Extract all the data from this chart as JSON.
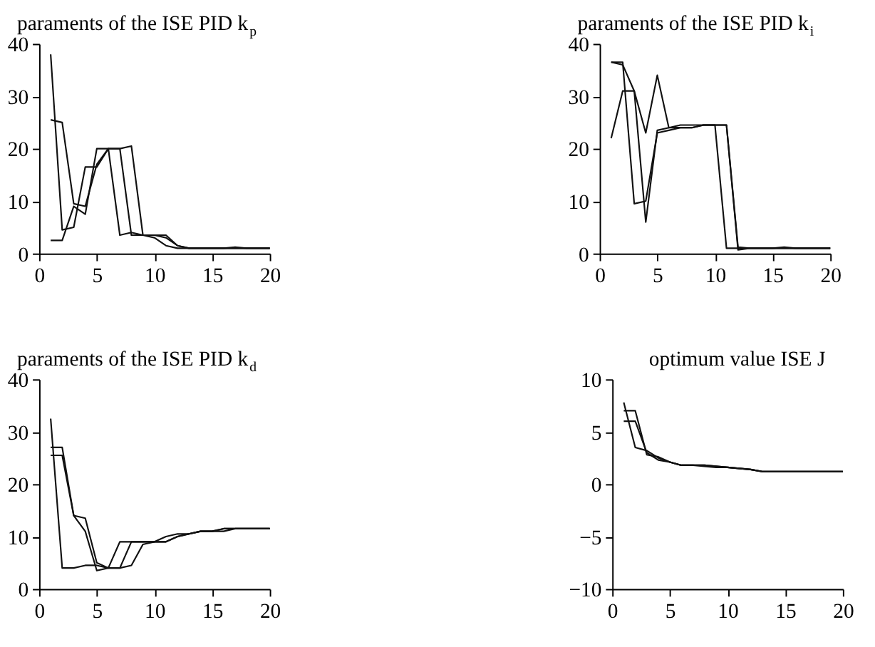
{
  "chart_data": [
    {
      "type": "line",
      "title": "paraments of the ISE PID k$_{p}$",
      "x": [
        1,
        2,
        3,
        4,
        5,
        6,
        7,
        8,
        9,
        10,
        11,
        12,
        13,
        14,
        15,
        16,
        17,
        18,
        19,
        20
      ],
      "xlim": [
        0,
        20
      ],
      "xticks": [
        0,
        5,
        10,
        15,
        20
      ],
      "ylim": [
        0,
        40
      ],
      "yticks": [
        0,
        10,
        20,
        30,
        40
      ],
      "grid": false,
      "series": [
        {
          "color": "#111111",
          "values": [
            38,
            4.5,
            5,
            16.5,
            16.5,
            20,
            20,
            3.5,
            3.5,
            3,
            1.5,
            1,
            1,
            1,
            1,
            1,
            1,
            1,
            1,
            1
          ]
        },
        {
          "color": "#111111",
          "values": [
            25.5,
            25,
            9.5,
            9,
            17,
            20,
            3.5,
            4,
            3.5,
            3.5,
            3,
            1.5,
            1,
            1,
            1,
            1,
            1,
            1,
            1,
            1
          ]
        },
        {
          "color": "#111111",
          "values": [
            2.5,
            2.5,
            9,
            7.5,
            20,
            20,
            20,
            20.5,
            3.5,
            3.5,
            3.5,
            1.5,
            1,
            1,
            1,
            1,
            1.2,
            1,
            1,
            1
          ]
        }
      ]
    },
    {
      "type": "line",
      "title": "paraments of the ISE PID k$_{i}$",
      "x": [
        1,
        2,
        3,
        4,
        5,
        6,
        7,
        8,
        9,
        10,
        11,
        12,
        13,
        14,
        15,
        16,
        17,
        18,
        19,
        20
      ],
      "xlim": [
        0,
        20
      ],
      "xticks": [
        0,
        5,
        10,
        15,
        20
      ],
      "ylim": [
        0,
        40
      ],
      "yticks": [
        0,
        10,
        20,
        30,
        40
      ],
      "grid": false,
      "series": [
        {
          "color": "#111111",
          "values": [
            36.5,
            36.5,
            9.5,
            10,
            23,
            23.5,
            24,
            24,
            24.5,
            24.5,
            1,
            1,
            1,
            1,
            1,
            1,
            1,
            1,
            1,
            1
          ]
        },
        {
          "color": "#111111",
          "values": [
            36.5,
            36,
            31,
            6,
            23.5,
            24,
            24,
            24,
            24.5,
            24.5,
            24.5,
            0.7,
            1,
            1,
            1,
            1.2,
            1,
            1,
            1,
            1
          ]
        },
        {
          "color": "#111111",
          "values": [
            22,
            31,
            31,
            23,
            34,
            24,
            24.5,
            24.5,
            24.5,
            24.5,
            24.5,
            1.2,
            1,
            1,
            1,
            1,
            1,
            1,
            1,
            1
          ]
        }
      ]
    },
    {
      "type": "line",
      "title": "paraments of the ISE PID k$_{d}$",
      "x": [
        1,
        2,
        3,
        4,
        5,
        6,
        7,
        8,
        9,
        10,
        11,
        12,
        13,
        14,
        15,
        16,
        17,
        18,
        19,
        20
      ],
      "xlim": [
        0,
        20
      ],
      "xticks": [
        0,
        5,
        10,
        15,
        20
      ],
      "ylim": [
        0,
        40
      ],
      "yticks": [
        0,
        10,
        20,
        30,
        40
      ],
      "grid": false,
      "series": [
        {
          "color": "#111111",
          "values": [
            32.5,
            4,
            4,
            4.5,
            4.5,
            4,
            4,
            4.5,
            8.5,
            9,
            9,
            10,
            10.5,
            11,
            11,
            11,
            11.5,
            11.5,
            11.5,
            11.5
          ]
        },
        {
          "color": "#111111",
          "values": [
            27,
            27,
            14,
            13.5,
            5,
            4,
            9,
            9,
            9,
            9,
            9,
            10,
            10.5,
            11,
            11,
            11.5,
            11.5,
            11.5,
            11.5,
            11.5
          ]
        },
        {
          "color": "#111111",
          "values": [
            25.5,
            25.5,
            14,
            11,
            3.5,
            4,
            4,
            9,
            9,
            9,
            10,
            10.5,
            10.5,
            11,
            11,
            11.5,
            11.5,
            11.5,
            11.5,
            11.5
          ]
        }
      ]
    },
    {
      "type": "line",
      "title": "optimum value ISE J",
      "x": [
        1,
        2,
        3,
        4,
        5,
        6,
        7,
        8,
        9,
        10,
        11,
        12,
        13,
        14,
        15,
        16,
        17,
        18,
        19,
        20
      ],
      "xlim": [
        0,
        20
      ],
      "xticks": [
        0,
        5,
        10,
        15,
        20
      ],
      "ylim": [
        -10,
        10
      ],
      "yticks": [
        -10,
        -5,
        0,
        5,
        10
      ],
      "grid": false,
      "series": [
        {
          "color": "#111111",
          "values": [
            7.8,
            3.5,
            3.2,
            2.5,
            2.1,
            1.8,
            1.8,
            1.8,
            1.7,
            1.6,
            1.5,
            1.4,
            1.2,
            1.2,
            1.2,
            1.2,
            1.2,
            1.2,
            1.2,
            1.2
          ]
        },
        {
          "color": "#111111",
          "values": [
            7,
            7,
            2.8,
            2.6,
            2.1,
            1.8,
            1.8,
            1.8,
            1.7,
            1.6,
            1.5,
            1.4,
            1.2,
            1.2,
            1.2,
            1.2,
            1.2,
            1.2,
            1.2,
            1.2
          ]
        },
        {
          "color": "#111111",
          "values": [
            6,
            6,
            3,
            2.3,
            2.1,
            1.8,
            1.8,
            1.7,
            1.6,
            1.6,
            1.5,
            1.4,
            1.2,
            1.2,
            1.2,
            1.2,
            1.2,
            1.2,
            1.2,
            1.2
          ]
        }
      ]
    }
  ]
}
